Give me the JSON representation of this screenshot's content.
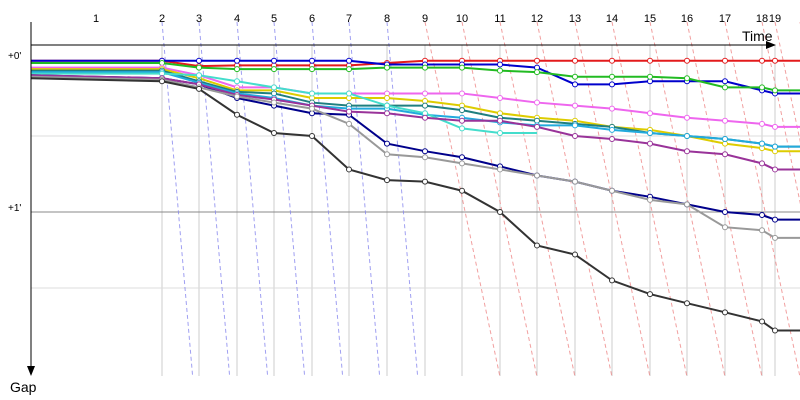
{
  "chart_data": {
    "type": "line",
    "title": "",
    "xlabel": "Time",
    "ylabel": "Gap",
    "x_tick_labels": [
      "1",
      "2",
      "3",
      "4",
      "5",
      "6",
      "7",
      "8",
      "9",
      "10",
      "11",
      "12",
      "13",
      "14",
      "15",
      "16",
      "17",
      "18",
      "19"
    ],
    "y_tick_labels": [
      "+0'",
      "+1'"
    ],
    "y_ticks": [
      0,
      1
    ],
    "ylim": [
      0,
      2.1
    ],
    "grid": true,
    "series": [
      {
        "color": "#e31a1c",
        "values": [
          0.005,
          0.005,
          0.04,
          0.035,
          0.035,
          0.035,
          0.035,
          0.02,
          0.005,
          0.005,
          0.005,
          0.005,
          0.005,
          0.005,
          0.005,
          0.005,
          0.005,
          0.005,
          0.005,
          0.005
        ]
      },
      {
        "color": "#0000cc",
        "values": [
          0.005,
          0.005,
          0.005,
          0.005,
          0.005,
          0.005,
          0.005,
          0.03,
          0.03,
          0.03,
          0.03,
          0.05,
          0.16,
          0.16,
          0.14,
          0.14,
          0.14,
          0.2,
          0.22,
          0.22
        ]
      },
      {
        "color": "#22bb22",
        "values": [
          0.02,
          0.02,
          0.05,
          0.06,
          0.06,
          0.06,
          0.06,
          0.05,
          0.05,
          0.05,
          0.07,
          0.08,
          0.11,
          0.11,
          0.11,
          0.12,
          0.18,
          0.18,
          0.2,
          0.2
        ]
      },
      {
        "color": "#ee66ee",
        "values": [
          0.05,
          0.05,
          0.1,
          0.18,
          0.18,
          0.22,
          0.22,
          0.22,
          0.22,
          0.22,
          0.25,
          0.28,
          0.3,
          0.32,
          0.35,
          0.38,
          0.4,
          0.42,
          0.44,
          0.44
        ]
      },
      {
        "color": "#ddcc00",
        "values": [
          0.06,
          0.06,
          0.12,
          0.2,
          0.2,
          0.25,
          0.25,
          0.25,
          0.27,
          0.3,
          0.35,
          0.38,
          0.4,
          0.44,
          0.46,
          0.5,
          0.55,
          0.58,
          0.6,
          0.6
        ]
      },
      {
        "color": "#1f7f7f",
        "values": [
          0.07,
          0.07,
          0.14,
          0.21,
          0.22,
          0.28,
          0.3,
          0.3,
          0.3,
          0.33,
          0.38,
          0.4,
          0.42,
          0.44,
          0.48,
          0.5,
          0.52,
          0.55,
          0.57,
          0.57
        ]
      },
      {
        "color": "#22aadd",
        "values": [
          0.08,
          0.08,
          0.15,
          0.22,
          0.25,
          0.3,
          0.32,
          0.32,
          0.36,
          0.38,
          0.41,
          0.43,
          0.43,
          0.46,
          0.48,
          0.5,
          0.52,
          0.55,
          0.57,
          0.57
        ]
      },
      {
        "color": "#44ddcc",
        "values": [
          0.09,
          0.09,
          0.1,
          0.14,
          0.18,
          0.22,
          0.22,
          0.3,
          0.35,
          0.45,
          0.48,
          0.48
        ]
      },
      {
        "color": "#00008b",
        "values": [
          0.1,
          0.12,
          0.16,
          0.25,
          0.3,
          0.35,
          0.36,
          0.55,
          0.6,
          0.64,
          0.7,
          0.76,
          0.8,
          0.86,
          0.9,
          0.95,
          1.0,
          1.02,
          1.05,
          1.05
        ]
      },
      {
        "color": "#993399",
        "values": [
          0.1,
          0.12,
          0.16,
          0.23,
          0.26,
          0.3,
          0.34,
          0.35,
          0.38,
          0.4,
          0.4,
          0.44,
          0.5,
          0.52,
          0.55,
          0.6,
          0.62,
          0.68,
          0.72,
          0.72
        ]
      },
      {
        "color": "#999999",
        "values": [
          0.11,
          0.13,
          0.18,
          0.24,
          0.28,
          0.32,
          0.42,
          0.62,
          0.64,
          0.68,
          0.72,
          0.76,
          0.8,
          0.86,
          0.92,
          0.95,
          1.1,
          1.12,
          1.17,
          1.17
        ]
      },
      {
        "color": "#333333",
        "values": [
          0.12,
          0.14,
          0.19,
          0.36,
          0.48,
          0.5,
          0.72,
          0.79,
          0.8,
          0.86,
          1.0,
          1.22,
          1.28,
          1.45,
          1.54,
          1.6,
          1.66,
          1.72,
          1.78,
          1.78
        ]
      }
    ]
  }
}
